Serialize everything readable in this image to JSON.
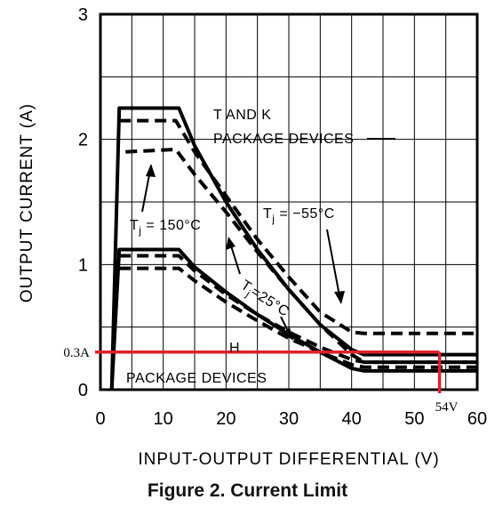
{
  "caption": "Figure 2. Current Limit",
  "chart_data": {
    "type": "line",
    "xlabel": "INPUT-OUTPUT DIFFERENTIAL (V)",
    "ylabel": "OUTPUT CURRENT (A)",
    "xlim": [
      0,
      60
    ],
    "ylim": [
      0,
      3
    ],
    "x_ticks": [
      "0",
      "10",
      "20",
      "30",
      "40",
      "50",
      "60"
    ],
    "y_ticks": [
      "0",
      "1",
      "2",
      "3"
    ],
    "grid": true,
    "series": [
      {
        "style": "solid",
        "points": [
          [
            1.8,
            0
          ],
          [
            3,
            2.25
          ],
          [
            12.5,
            2.25
          ],
          [
            15,
            1.95
          ],
          [
            20,
            1.5
          ],
          [
            25,
            1.12
          ],
          [
            30,
            0.8
          ],
          [
            35,
            0.52
          ],
          [
            40,
            0.32
          ],
          [
            42,
            0.28
          ],
          [
            60,
            0.28
          ]
        ]
      },
      {
        "style": "dashed",
        "points": [
          [
            3,
            2.15
          ],
          [
            12,
            2.15
          ],
          [
            15,
            1.9
          ],
          [
            20,
            1.55
          ],
          [
            25,
            1.2
          ],
          [
            30,
            0.9
          ],
          [
            35,
            0.62
          ],
          [
            40,
            0.46
          ],
          [
            42,
            0.45
          ],
          [
            60,
            0.45
          ]
        ]
      },
      {
        "style": "dashed",
        "points": [
          [
            4,
            1.9
          ],
          [
            12,
            1.92
          ],
          [
            15,
            1.72
          ],
          [
            20,
            1.42
          ],
          [
            25,
            1.1
          ],
          [
            30,
            0.8
          ],
          [
            35,
            0.52
          ],
          [
            40,
            0.28
          ],
          [
            42,
            0.22
          ],
          [
            60,
            0.22
          ]
        ]
      },
      {
        "style": "solid",
        "points": [
          [
            1.8,
            0
          ],
          [
            3,
            1.12
          ],
          [
            12.5,
            1.12
          ],
          [
            15,
            0.98
          ],
          [
            20,
            0.78
          ],
          [
            25,
            0.6
          ],
          [
            30,
            0.44
          ],
          [
            35,
            0.3
          ],
          [
            40,
            0.17
          ],
          [
            42,
            0.15
          ],
          [
            60,
            0.15
          ]
        ]
      },
      {
        "style": "dashed",
        "points": [
          [
            3,
            1.07
          ],
          [
            12.5,
            1.07
          ],
          [
            15,
            0.95
          ],
          [
            20,
            0.76
          ],
          [
            25,
            0.6
          ],
          [
            30,
            0.46
          ],
          [
            35,
            0.34
          ],
          [
            40,
            0.24
          ],
          [
            42,
            0.22
          ],
          [
            60,
            0.22
          ]
        ]
      },
      {
        "style": "dashed",
        "points": [
          [
            3,
            0.97
          ],
          [
            12.5,
            0.97
          ],
          [
            15,
            0.87
          ],
          [
            20,
            0.7
          ],
          [
            25,
            0.55
          ],
          [
            30,
            0.41
          ],
          [
            35,
            0.3
          ],
          [
            40,
            0.2
          ],
          [
            42,
            0.18
          ],
          [
            60,
            0.18
          ]
        ]
      }
    ],
    "annotations": {
      "tk_line1": "T AND K",
      "tk_line2": "PACKAGE DEVICES",
      "h_line1": "H",
      "h_line2": "PACKAGE DEVICES",
      "tj150_main": "T",
      "tj150_sub": "j",
      "tj150_rest": " = 150°C",
      "tj55_main": "T",
      "tj55_sub": "j",
      "tj55_rest": " = −55°C",
      "tj25_main": "T",
      "tj25_sub": "j",
      "tj25_rest": "=25°C"
    },
    "markers": {
      "color": "#e0202a",
      "y_value": 0.3,
      "y_label": "0.3A",
      "x_value": 54,
      "x_label": "54V"
    }
  }
}
